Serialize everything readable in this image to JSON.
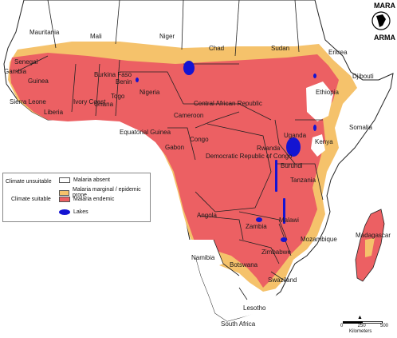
{
  "legend": {
    "climate_unsuitable": "Climate unsuitable",
    "climate_suitable": "Climate suitable",
    "absent": "Malaria absent",
    "marginal": "Malaria marginal / epidemic prone",
    "endemic": "Malaria endemic",
    "lakes": "Lakes"
  },
  "colors": {
    "absent": "#ffffff",
    "marginal": "#f5c26b",
    "endemic": "#ec6063",
    "lakes": "#1414d2",
    "border": "#222222"
  },
  "logo": {
    "top": "MARA",
    "bottom": "ARMA"
  },
  "scale": {
    "t0": "0",
    "t1": "250",
    "t2": "500",
    "unit": "Kilometers"
  },
  "countries": {
    "mauritania": "Mauritania",
    "mali": "Mali",
    "niger": "Niger",
    "chad": "Chad",
    "sudan": "Sudan",
    "eritrea": "Eritrea",
    "djibouti": "Djibouti",
    "ethiopia": "Ethiopia",
    "somalia": "Somalia",
    "senegal": "Senegal",
    "gambia": "Gambia",
    "guinea": "Guinea",
    "sierra_leone": "Sierra Leone",
    "liberia": "Liberia",
    "ivory_coast": "Ivory Coast",
    "ghana": "Ghana",
    "togo": "Togo",
    "benin": "Benin",
    "burkina_faso": "Burkina Faso",
    "nigeria": "Nigeria",
    "car": "Central African Republic",
    "cameroon": "Cameroon",
    "eq_guinea": "Equatorial Guinea",
    "gabon": "Gabon",
    "congo": "Congo",
    "drc": "Democratic Republic of Congo",
    "uganda": "Uganda",
    "kenya": "Kenya",
    "rwanda": "Rwanda",
    "burundi": "Burundi",
    "tanzania": "Tanzania",
    "angola": "Angola",
    "zambia": "Zambia",
    "malawi": "Malawi",
    "mozambique": "Mozambique",
    "madagascar": "Madagascar",
    "zimbabwe": "Zimbabwe",
    "namibia": "Namibia",
    "botswana": "Botswana",
    "swaziland": "Swaziland",
    "lesotho": "Lesotho",
    "south_africa": "South Africa"
  }
}
